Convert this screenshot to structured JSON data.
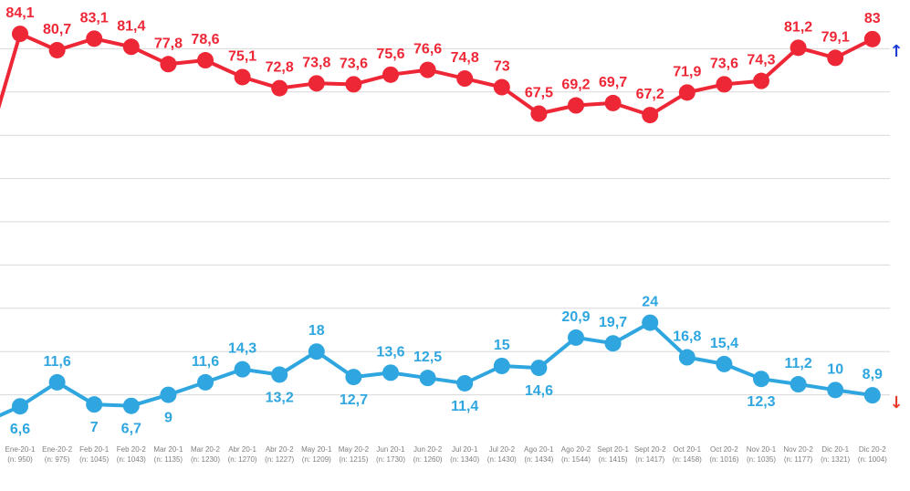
{
  "chart_data": {
    "type": "line",
    "categories": [
      "Ene-20-1",
      "Ene-20-2",
      "Feb 20-1",
      "Feb 20-2",
      "Mar 20-1",
      "Mar 20-2",
      "Abr 20-1",
      "Abr 20-2",
      "May 20-1",
      "May 20-2",
      "Jun 20-1",
      "Jun 20-2",
      "Jul 20-1",
      "Jul 20-2",
      "Ago 20-1",
      "Ago 20-2",
      "Sept 20-1",
      "Sept 20-2",
      "Oct 20-1",
      "Oct 20-2",
      "Nov 20-1",
      "Nov 20-2",
      "Dic 20-1",
      "Dic 20-2"
    ],
    "sample_sizes": [
      "(n: 950)",
      "(n: 975)",
      "(n: 1045)",
      "(n: 1043)",
      "(n: 1135)",
      "(n: 1230)",
      "(n: 1270)",
      "(n: 1227)",
      "(n: 1209)",
      "(n: 1215)",
      "(n: 1730)",
      "(n: 1260)",
      "(n: 1340)",
      "(n: 1430)",
      "(n: 1434)",
      "(n: 1544)",
      "(n: 1415)",
      "(n: 1417)",
      "(n: 1458)",
      "(n: 1016)",
      "(n: 1035)",
      "(n: 1177)",
      "(n: 1321)",
      "(n: 1004)"
    ],
    "series": [
      {
        "color": "#ee2736",
        "values": [
          84.1,
          80.7,
          83.1,
          81.4,
          77.8,
          78.6,
          75.1,
          72.8,
          73.8,
          73.6,
          75.6,
          76.6,
          74.8,
          73,
          67.5,
          69.2,
          69.7,
          67.2,
          71.9,
          73.6,
          74.3,
          81.2,
          79.1,
          83
        ],
        "labels": [
          "84,1",
          "80,7",
          "83,1",
          "81,4",
          "77,8",
          "78,6",
          "75,1",
          "72,8",
          "73,8",
          "73,6",
          "75,6",
          "76,6",
          "74,8",
          "73",
          "67,5",
          "69,2",
          "69,7",
          "67,2",
          "71,9",
          "73,6",
          "74,3",
          "81,2",
          "79,1",
          "83"
        ],
        "trend": "up"
      },
      {
        "color": "#2fa6df",
        "values": [
          6.6,
          11.6,
          7,
          6.7,
          9,
          11.6,
          14.3,
          13.2,
          18,
          12.7,
          13.6,
          12.5,
          11.4,
          15,
          14.6,
          20.9,
          19.7,
          24,
          16.8,
          15.4,
          12.3,
          11.2,
          10,
          8.9
        ],
        "labels": [
          "6,6",
          "11,6",
          "7",
          "6,7",
          "9",
          "11,6",
          "14,3",
          "13,2",
          "18",
          "12,7",
          "13,6",
          "12,5",
          "11,4",
          "15",
          "14,6",
          "20,9",
          "19,7",
          "24",
          "16,8",
          "15,4",
          "12,3",
          "11,2",
          "10",
          "8,9"
        ],
        "trend": "down"
      }
    ],
    "ylim": [
      0,
      90
    ],
    "grid": true,
    "trend_colors": {
      "up": "#1f3bd6",
      "down": "#e53b2c"
    },
    "trend_icons": {
      "up": "arrow-up-icon",
      "down": "arrow-down-icon"
    }
  }
}
